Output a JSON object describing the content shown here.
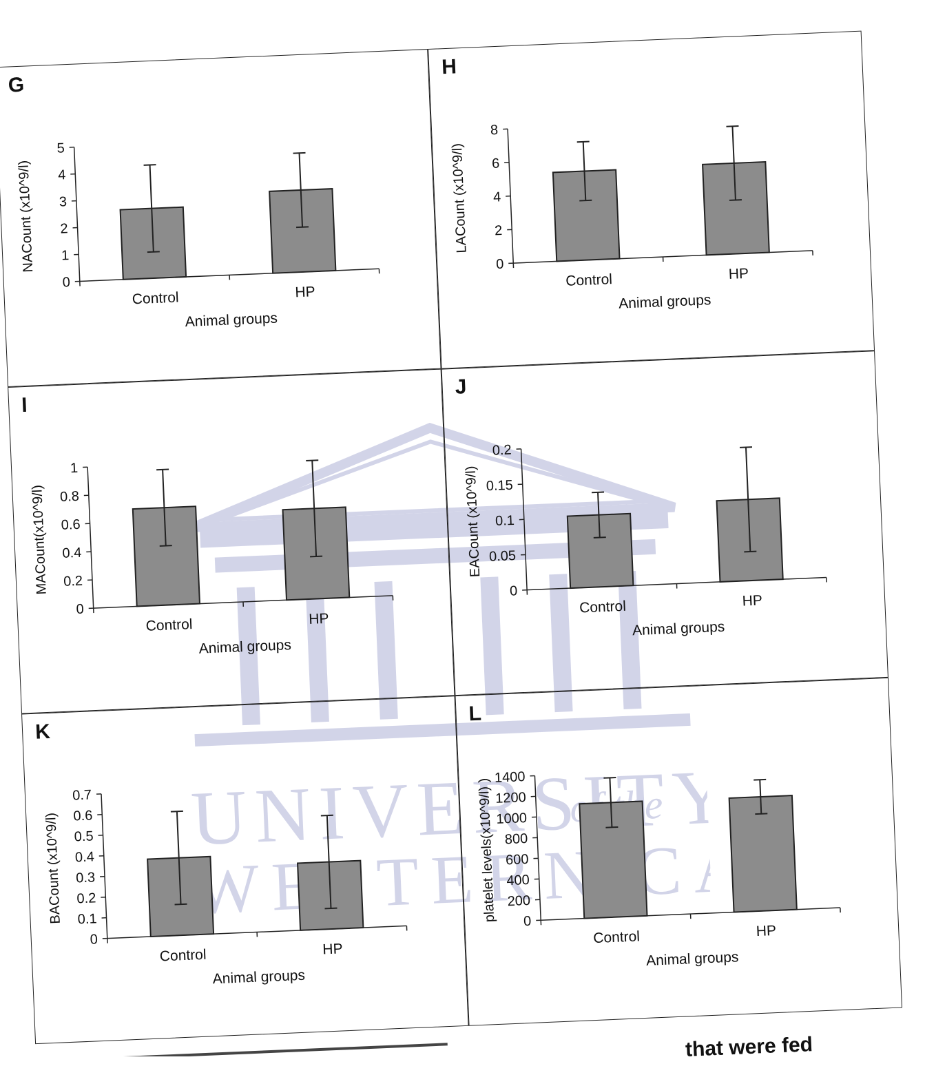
{
  "caption": {
    "text": "that were fed"
  },
  "watermark": {
    "line1": "UNIVERSITY",
    "line1b": "of the",
    "line2": "WESTERN CAPE",
    "color": "#8a8fc4"
  },
  "bar_color": "#8c8c8c",
  "chart_data": [
    {
      "id": "G",
      "letter": "G",
      "type": "bar",
      "categories": [
        "Control",
        "HP"
      ],
      "values": [
        2.6,
        3.05
      ],
      "errors": [
        1.62,
        1.38
      ],
      "ylabel": "NACount (x10^9/l)",
      "xlabel": "Animal groups",
      "ylim": [
        0,
        5
      ],
      "yticks": [
        "0",
        "1",
        "2",
        "3",
        "4",
        "5"
      ]
    },
    {
      "id": "H",
      "letter": "H",
      "type": "bar",
      "categories": [
        "Control",
        "HP"
      ],
      "values": [
        5.3,
        5.4
      ],
      "errors": [
        1.75,
        2.2
      ],
      "ylabel": "LACount (x10^9/l)",
      "xlabel": "Animal groups",
      "ylim": [
        0,
        8
      ],
      "yticks": [
        "0",
        "2",
        "4",
        "6",
        "8"
      ]
    },
    {
      "id": "I",
      "letter": "I",
      "type": "bar",
      "categories": [
        "Control",
        "HP"
      ],
      "values": [
        0.69,
        0.64
      ],
      "errors": [
        0.27,
        0.34
      ],
      "ylabel": "MACount(x10^9/l)",
      "xlabel": "Animal groups",
      "ylim": [
        0,
        1
      ],
      "yticks": [
        "0",
        "0.2",
        "0.4",
        "0.6",
        "0.8",
        "1"
      ]
    },
    {
      "id": "J",
      "letter": "J",
      "type": "bar",
      "categories": [
        "Control",
        "HP"
      ],
      "values": [
        0.102,
        0.115
      ],
      "errors": [
        0.032,
        0.074
      ],
      "ylabel": "EACount  (x10^9/l)",
      "xlabel": "Animal groups",
      "ylim": [
        0,
        0.2
      ],
      "yticks": [
        "0",
        "0.05",
        "0.1",
        "0.15",
        "0.2"
      ]
    },
    {
      "id": "K",
      "letter": "K",
      "type": "bar",
      "categories": [
        "Control",
        "HP"
      ],
      "values": [
        0.375,
        0.325
      ],
      "errors": [
        0.225,
        0.225
      ],
      "ylabel": "BACount (x10^9/l)",
      "xlabel": "Animal groups",
      "ylim": [
        0,
        0.7
      ],
      "yticks": [
        "0",
        "0.1",
        "0.2",
        "0.3",
        "0.4",
        "0.5",
        "0.6",
        "0.7"
      ]
    },
    {
      "id": "L",
      "letter": "L",
      "type": "bar",
      "categories": [
        "Control",
        "HP"
      ],
      "values": [
        1110,
        1105
      ],
      "errors": [
        240,
        165
      ],
      "ylabel": "platelet levels(x10^9/l) )",
      "xlabel": "Animal groups",
      "ylim": [
        0,
        1400
      ],
      "yticks": [
        "0",
        "200",
        "400",
        "600",
        "800",
        "1000",
        "1200",
        "1400"
      ]
    }
  ]
}
